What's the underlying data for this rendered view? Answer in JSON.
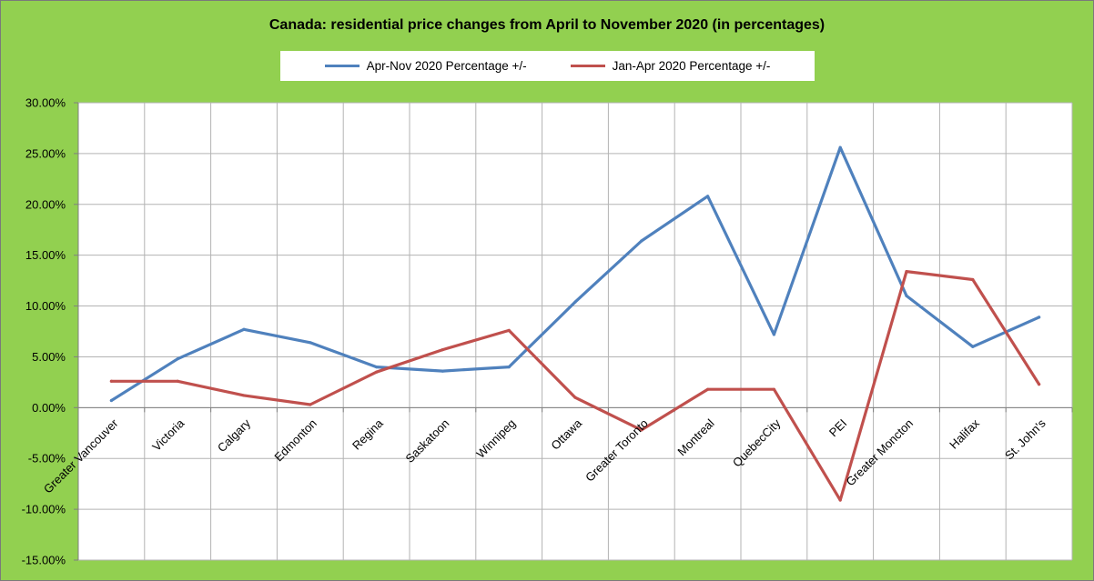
{
  "chart_data": {
    "type": "line",
    "title": "Canada: residential price changes from April to November 2020 (in percentages)",
    "xlabel": "",
    "ylabel": "",
    "categories": [
      "Greater Vancouver",
      "Victoria",
      "Calgary",
      "Edmonton",
      "Regina",
      "Saskatoon",
      "Winnipeg",
      "Ottawa",
      "Greater Toronto",
      "Montreal",
      "QuebecCity",
      "PEI",
      "Greater Moncton",
      "Halifax",
      "St. John's"
    ],
    "series": [
      {
        "name": "Apr-Nov 2020 Percentage +/-",
        "color": "#4f81bd",
        "values": [
          0.7,
          4.8,
          7.7,
          6.4,
          4.0,
          3.6,
          4.0,
          10.4,
          16.4,
          20.8,
          7.2,
          25.6,
          11.0,
          6.0,
          8.9
        ]
      },
      {
        "name": "Jan-Apr 2020 Percentage +/-",
        "color": "#c0504d",
        "values": [
          2.6,
          2.6,
          1.2,
          0.3,
          3.5,
          5.7,
          7.6,
          1.0,
          -2.2,
          1.8,
          1.8,
          -9.1,
          13.4,
          12.6,
          2.3
        ]
      }
    ],
    "ylim": [
      -15,
      30
    ],
    "yticks": [
      30,
      25,
      20,
      15,
      10,
      5,
      0,
      -5,
      -10,
      -15
    ],
    "ytick_labels": [
      "30.00%",
      "25.00%",
      "20.00%",
      "15.00%",
      "10.00%",
      "5.00%",
      "0.00%",
      "-5.00%",
      "-10.00%",
      "-15.00%"
    ],
    "grid": true,
    "legend_position": "top"
  }
}
